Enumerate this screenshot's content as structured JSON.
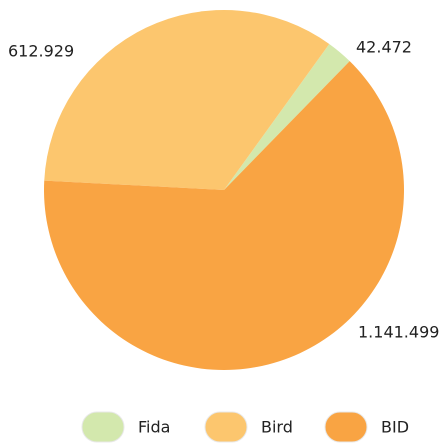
{
  "chart_data": {
    "type": "pie",
    "categories": [
      "Fida",
      "Bird",
      "BID"
    ],
    "values": [
      42472,
      612929,
      1141499
    ],
    "value_labels": [
      "42.472",
      "612.929",
      "1.141.499"
    ],
    "colors": [
      "#d3e8ad",
      "#fcc66e",
      "#f9a443"
    ]
  }
}
